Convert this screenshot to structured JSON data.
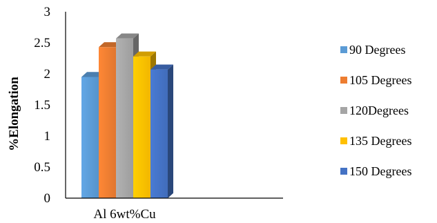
{
  "chart_data": {
    "type": "bar",
    "style": "3d-clustered-column",
    "categories": [
      "Al 6wt%Cu"
    ],
    "series": [
      {
        "name": "90 Degrees",
        "values": [
          1.95
        ],
        "color": "#5B9BD5"
      },
      {
        "name": "105 Degrees",
        "values": [
          2.43
        ],
        "color": "#ED7D31"
      },
      {
        "name": "120Degrees",
        "values": [
          2.57
        ],
        "color": "#A5A5A5"
      },
      {
        "name": "135 Degrees",
        "values": [
          2.28
        ],
        "color": "#FFC000"
      },
      {
        "name": "150 Degrees",
        "values": [
          2.07
        ],
        "color": "#4472C4"
      }
    ],
    "title": "",
    "xlabel": "",
    "ylabel": "%Elongation",
    "ylim": [
      0,
      3
    ],
    "yticks": [
      "0",
      "0.5",
      "1",
      "1.5",
      "2",
      "2.5",
      "3"
    ],
    "grid": false,
    "legend_position": "right"
  }
}
